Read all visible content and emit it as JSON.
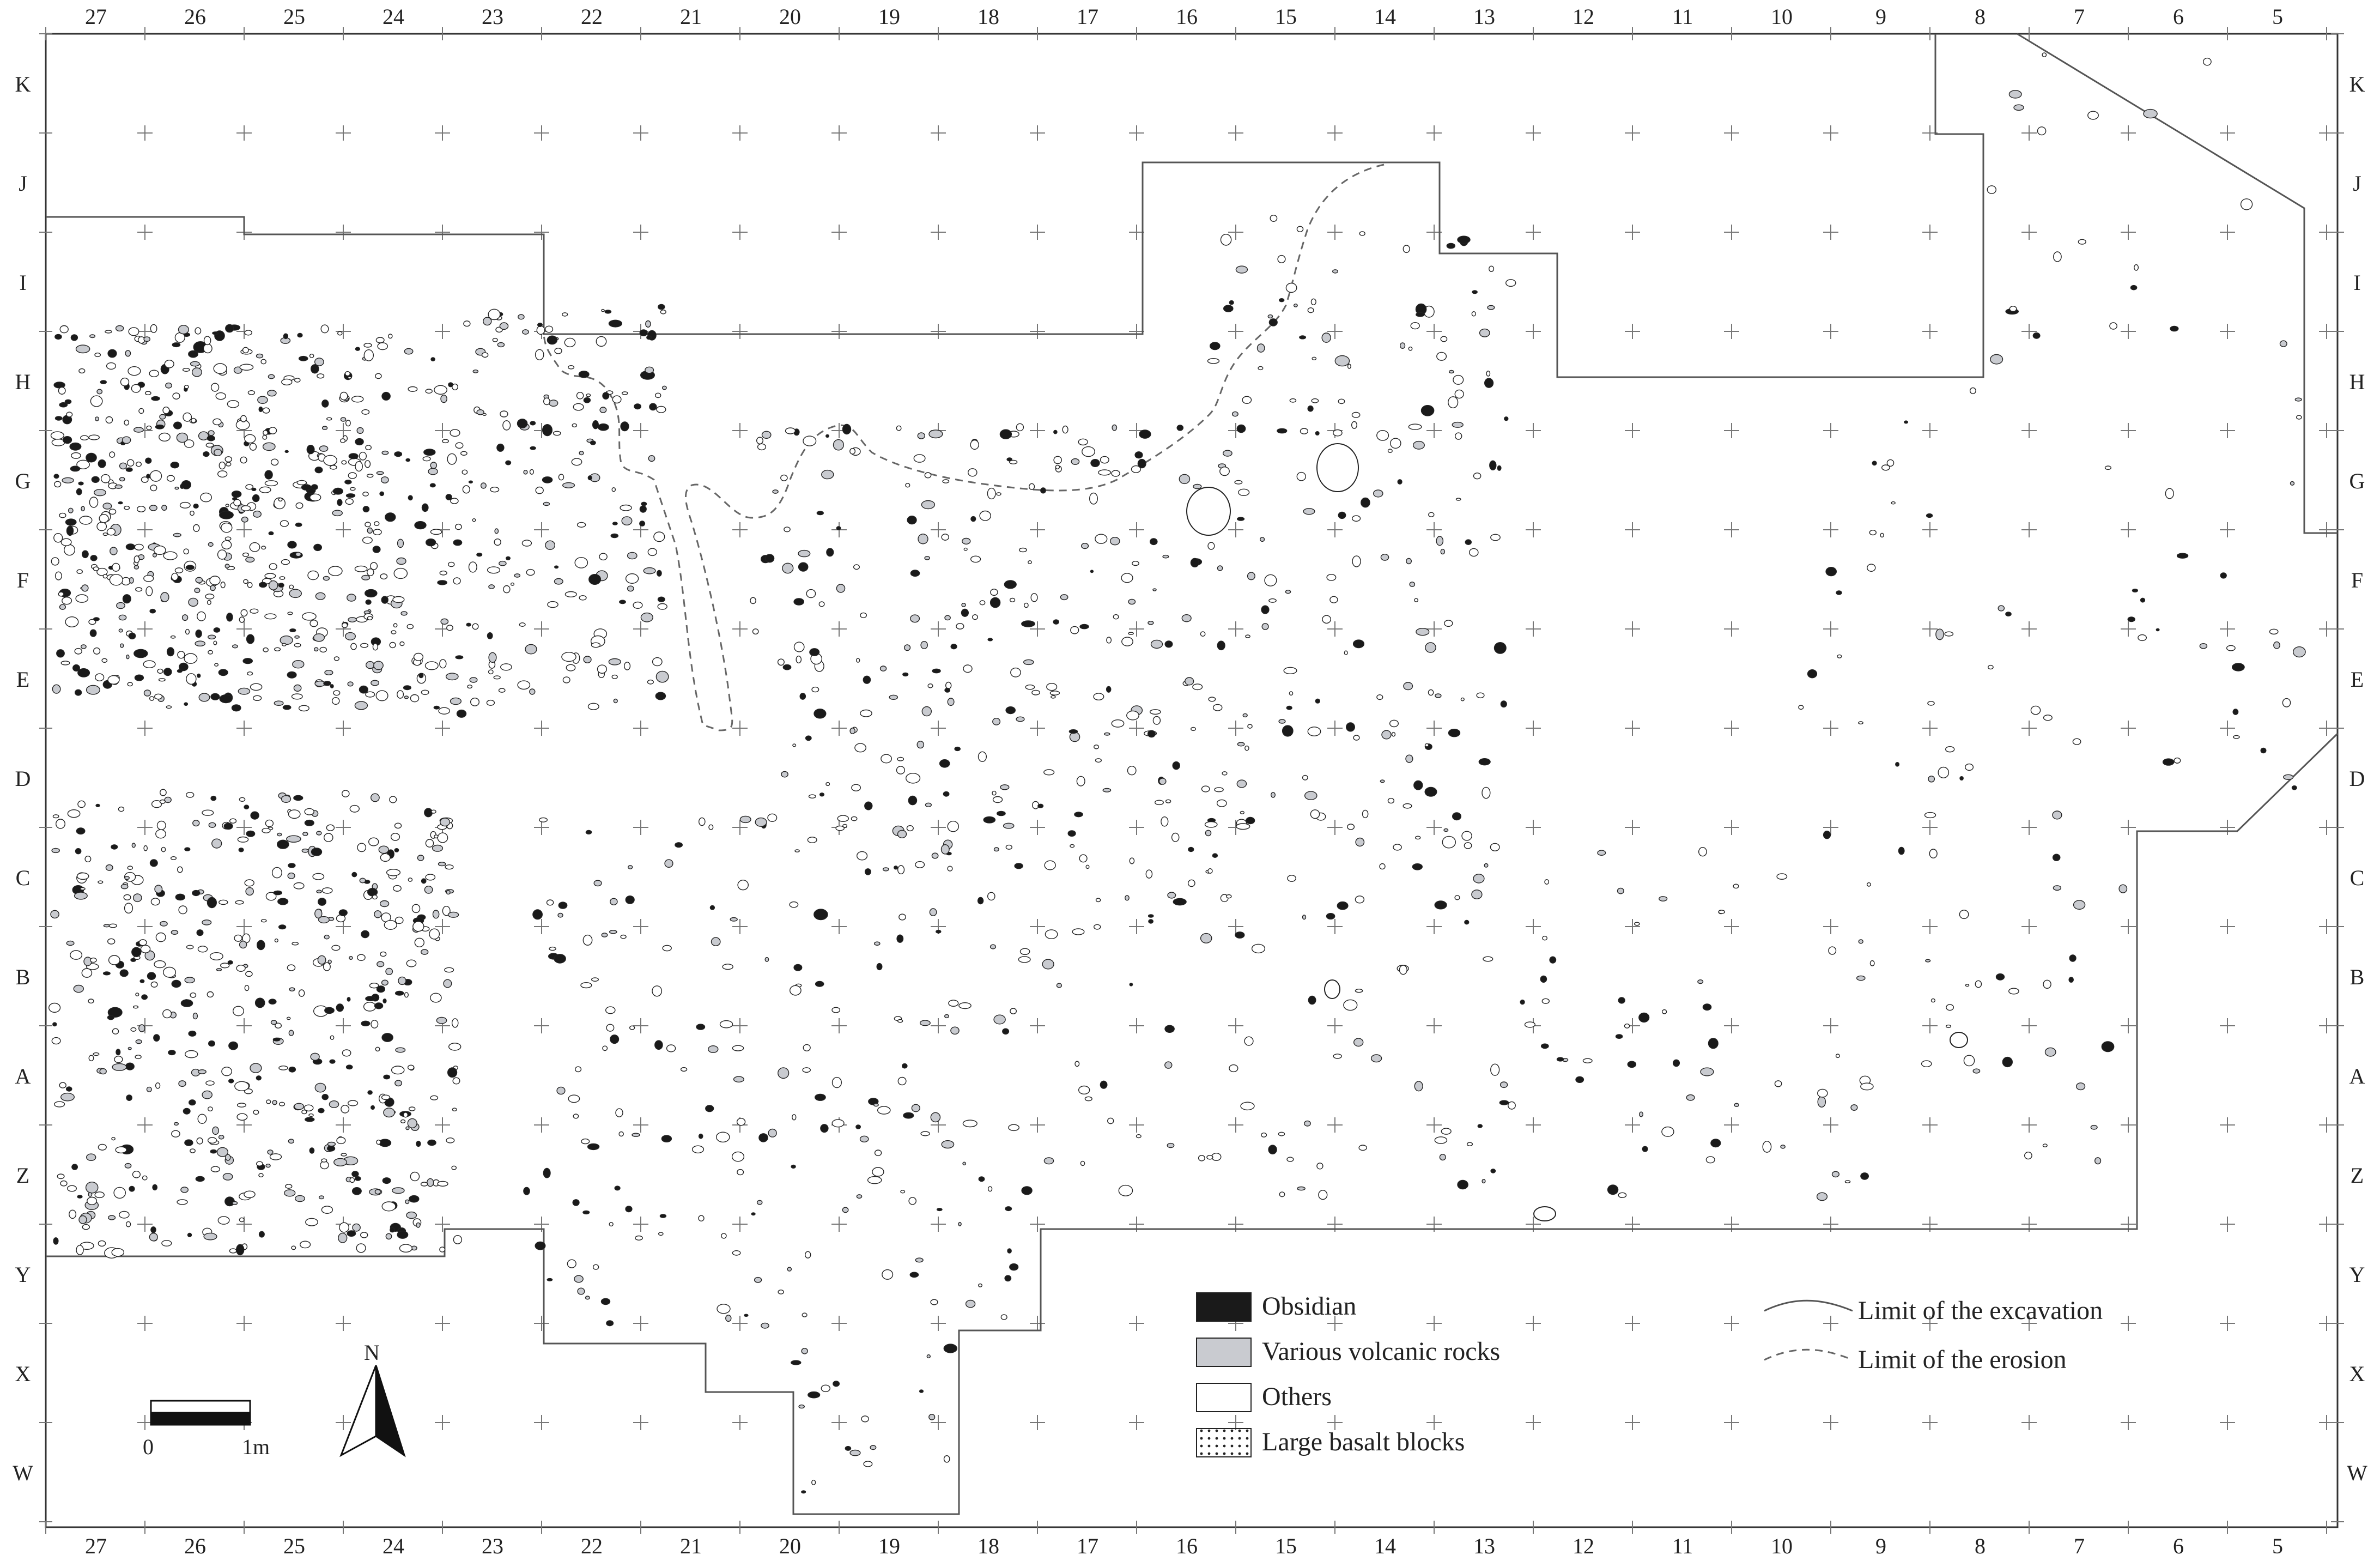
{
  "grid": {
    "columns": [
      "27",
      "26",
      "25",
      "24",
      "23",
      "22",
      "21",
      "20",
      "19",
      "18",
      "17",
      "16",
      "15",
      "14",
      "13",
      "12",
      "11",
      "10",
      "9",
      "8",
      "7",
      "6",
      "5"
    ],
    "rows": [
      "K",
      "J",
      "I",
      "H",
      "G",
      "F",
      "E",
      "D",
      "C",
      "B",
      "A",
      "Z",
      "Y",
      "X",
      "W"
    ]
  },
  "legend": {
    "items": [
      {
        "label": "Obsidian",
        "fill": "#1a1a1a",
        "pattern": "solid"
      },
      {
        "label": "Various volcanic rocks",
        "fill": "#c9cbd0",
        "pattern": "solid"
      },
      {
        "label": "Others",
        "fill": "#ffffff",
        "pattern": "solid"
      },
      {
        "label": "Large basalt blocks",
        "fill": "#ffffff",
        "pattern": "dots"
      }
    ],
    "lines": [
      {
        "label": "Limit of the excavation",
        "style": "solid"
      },
      {
        "label": "Limit of the erosion",
        "style": "dashed"
      }
    ]
  },
  "scale_bar": {
    "start_label": "0",
    "end_label": "1m"
  },
  "north_arrow": {
    "label": "N"
  },
  "colors": {
    "obsidian": "#1a1a1a",
    "volcanic": "#c9cbd0",
    "other": "#ffffff",
    "line": "#444444"
  }
}
